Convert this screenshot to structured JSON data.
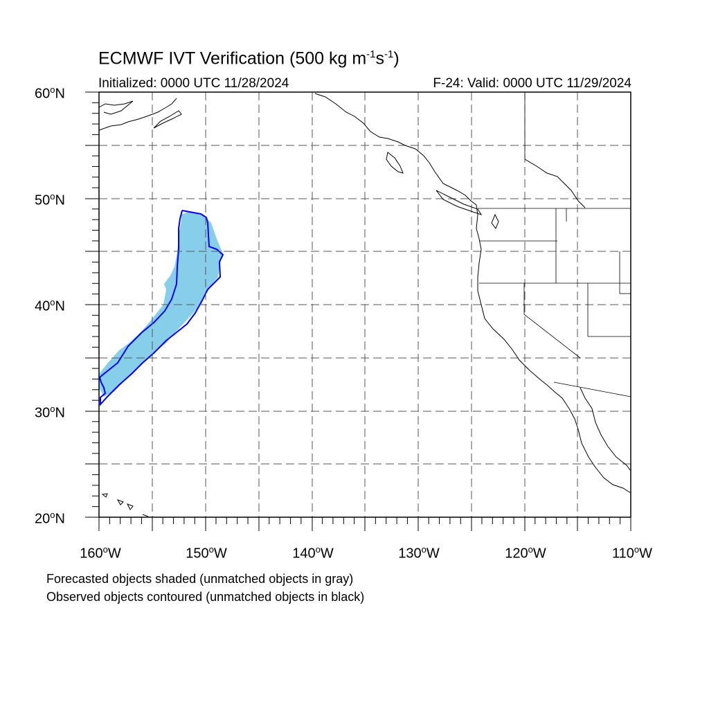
{
  "title": {
    "prefix": "ECMWF IVT Verification (500 kg m",
    "exp1": "-1",
    "mid": "s",
    "exp2": "-1",
    "suffix": ")"
  },
  "initialized": "Initialized: 0000 UTC 11/28/2024",
  "valid": "F-24: Valid: 0000 UTC 11/29/2024",
  "lat_labels": [
    {
      "value": 60,
      "text": "60",
      "suffix": "N"
    },
    {
      "value": 50,
      "text": "50",
      "suffix": "N"
    },
    {
      "value": 40,
      "text": "40",
      "suffix": "N"
    },
    {
      "value": 30,
      "text": "30",
      "suffix": "N"
    },
    {
      "value": 20,
      "text": "20",
      "suffix": "N"
    }
  ],
  "lon_labels": [
    {
      "value": -160,
      "text": "160",
      "suffix": "W"
    },
    {
      "value": -150,
      "text": "150",
      "suffix": "W"
    },
    {
      "value": -140,
      "text": "140",
      "suffix": "W"
    },
    {
      "value": -130,
      "text": "130",
      "suffix": "W"
    },
    {
      "value": -120,
      "text": "120",
      "suffix": "W"
    },
    {
      "value": -110,
      "text": "110",
      "suffix": "W"
    }
  ],
  "degree_symbol": "o",
  "footnotes": {
    "line1": "Forecasted objects shaded (unmatched objects in gray)",
    "line2": "Observed objects contoured (unmatched objects in black)"
  },
  "map": {
    "lon_range": [
      -160,
      -110
    ],
    "lat_range": [
      20,
      60
    ],
    "grid_lons": [
      -155,
      -150,
      -145,
      -140,
      -135,
      -130,
      -125,
      -120,
      -115
    ],
    "grid_lats": [
      25,
      30,
      35,
      40,
      45,
      50,
      55
    ],
    "grid_style": "dashed",
    "colors": {
      "forecast_fill": "#87ceeb",
      "observed_contour": "#0000ff",
      "coastline": "#000000",
      "grid": "#555555"
    }
  }
}
